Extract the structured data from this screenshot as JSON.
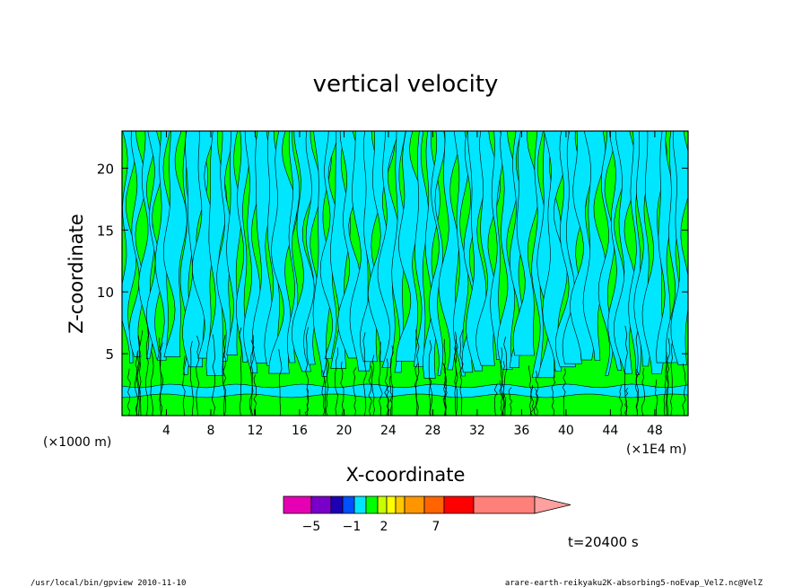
{
  "chart_data": {
    "type": "heatmap",
    "title": "vertical velocity",
    "xlabel": "X-coordinate",
    "ylabel": "Z-coordinate",
    "x_unit_left": "(×1000 m)",
    "x_unit_right": "(×1E4 m)",
    "xlim": [
      0,
      51
    ],
    "ylim": [
      0,
      23
    ],
    "x_ticks": [
      4,
      8,
      12,
      16,
      20,
      24,
      28,
      32,
      36,
      40,
      44,
      48
    ],
    "y_ticks": [
      5,
      10,
      15,
      20
    ],
    "colorbar": {
      "labels": [
        {
          "value": -5,
          "text": "−5"
        },
        {
          "value": -1,
          "text": "−1"
        },
        {
          "value": 2,
          "text": "2"
        },
        {
          "value": 7,
          "text": "7"
        }
      ],
      "colors": [
        "#e600b4",
        "#7800c8",
        "#1e00b4",
        "#0050ff",
        "#00e6ff",
        "#00ff00",
        "#c8ff00",
        "#ffff00",
        "#ffc800",
        "#ff9600",
        "#ff6400",
        "#ff0000",
        "#ff8078",
        "#ffa0a0"
      ]
    },
    "time_label": "t=20400 s"
  },
  "footer": {
    "left": "/usr/local/bin/gpview   2010-11-10",
    "right": "arare-earth-reikyaku2K-absorbing5-noEvap_VelZ.nc@VelZ"
  }
}
